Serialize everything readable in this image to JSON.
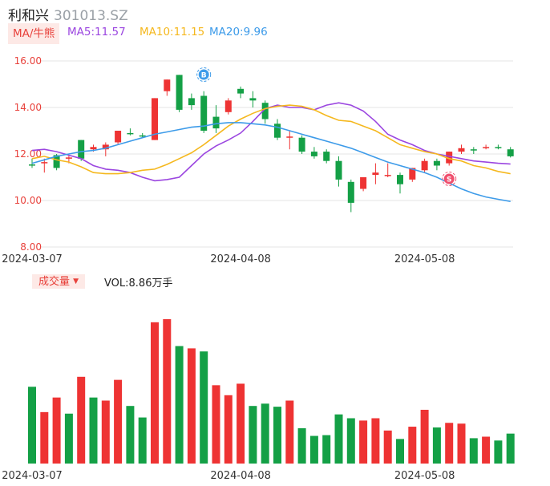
{
  "header": {
    "name": "利和兴",
    "code": "301013.SZ"
  },
  "ma_legend": {
    "tag": "MA/牛熊",
    "ma5": "MA5:11.57",
    "ma10": "MA10:11.15",
    "ma20": "MA20:9.96"
  },
  "volume_legend": {
    "tag": "成交量",
    "value": "VOL:8.86万手"
  },
  "colors": {
    "up": "#ee3333",
    "down": "#14a046",
    "ma5": "#9b46e0",
    "ma10": "#f5b81e",
    "ma20": "#3d9be9",
    "axis": "#e8413b"
  },
  "icons": {
    "b_marker": "B-buy-marker-icon",
    "s_marker": "S-sell-marker-icon"
  },
  "chart_data": [
    {
      "type": "candlestick",
      "yticks": [
        "16.00",
        "14.00",
        "12.00",
        "10.00",
        "8.00"
      ],
      "ylim": [
        8,
        16
      ],
      "xticks": [
        {
          "label": "2024-03-07",
          "index": 0
        },
        {
          "label": "2024-04-08",
          "index": 17
        },
        {
          "label": "2024-05-08",
          "index": 32
        }
      ],
      "candles": [
        [
          11.55,
          11.5,
          11.8,
          11.4
        ],
        [
          11.6,
          11.65,
          11.8,
          11.2
        ],
        [
          11.95,
          11.4,
          12.0,
          11.3
        ],
        [
          11.8,
          11.85,
          11.95,
          11.6
        ],
        [
          12.6,
          11.8,
          12.6,
          11.7
        ],
        [
          12.2,
          12.3,
          12.4,
          12.1
        ],
        [
          12.2,
          12.4,
          12.5,
          11.9
        ],
        [
          12.5,
          13.0,
          13.0,
          12.4
        ],
        [
          12.9,
          12.85,
          13.1,
          12.8
        ],
        [
          12.8,
          12.75,
          12.9,
          12.7
        ],
        [
          12.6,
          14.4,
          14.4,
          12.6
        ],
        [
          14.7,
          15.2,
          15.2,
          14.5
        ],
        [
          15.4,
          13.9,
          15.4,
          13.8
        ],
        [
          14.4,
          14.1,
          14.6,
          13.9
        ],
        [
          14.5,
          13.0,
          14.7,
          12.9
        ],
        [
          13.6,
          13.1,
          14.1,
          12.9
        ],
        [
          13.8,
          14.3,
          14.4,
          13.7
        ],
        [
          14.8,
          14.6,
          14.9,
          14.4
        ],
        [
          14.4,
          14.3,
          14.7,
          14.0
        ],
        [
          14.2,
          13.5,
          14.3,
          13.3
        ],
        [
          13.3,
          12.7,
          13.5,
          12.6
        ],
        [
          12.75,
          12.75,
          13.0,
          12.2
        ],
        [
          12.7,
          12.1,
          12.8,
          12.0
        ],
        [
          12.1,
          11.9,
          12.3,
          11.8
        ],
        [
          12.1,
          11.7,
          12.2,
          11.6
        ],
        [
          11.7,
          10.9,
          11.9,
          10.6
        ],
        [
          10.8,
          9.9,
          10.9,
          9.5
        ],
        [
          10.5,
          11.0,
          11.0,
          10.4
        ],
        [
          11.1,
          11.2,
          11.6,
          10.7
        ],
        [
          11.05,
          11.1,
          11.6,
          11.0
        ],
        [
          11.1,
          10.7,
          11.2,
          10.3
        ],
        [
          10.9,
          11.4,
          11.4,
          10.8
        ],
        [
          11.3,
          11.7,
          11.8,
          11.2
        ],
        [
          11.7,
          11.5,
          11.8,
          11.3
        ],
        [
          11.6,
          12.1,
          12.1,
          11.5
        ],
        [
          12.1,
          12.25,
          12.4,
          12.0
        ],
        [
          12.2,
          12.15,
          12.3,
          12.0
        ],
        [
          12.25,
          12.3,
          12.4,
          12.2
        ],
        [
          12.3,
          12.25,
          12.4,
          12.2
        ],
        [
          12.2,
          11.9,
          12.3,
          11.85
        ]
      ],
      "ma5": [
        12.15,
        12.2,
        12.1,
        11.95,
        11.8,
        11.5,
        11.35,
        11.3,
        11.2,
        11.0,
        10.85,
        10.9,
        11.0,
        11.5,
        12.0,
        12.35,
        12.6,
        12.9,
        13.4,
        13.95,
        14.1,
        14.0,
        14.0,
        13.9,
        14.1,
        14.2,
        14.1,
        13.85,
        13.4,
        12.85,
        12.6,
        12.4,
        12.15,
        12.0,
        11.9,
        11.8,
        11.7,
        11.65,
        11.6,
        11.57
      ],
      "ma10": [
        11.8,
        11.9,
        11.75,
        11.65,
        11.45,
        11.2,
        11.15,
        11.15,
        11.2,
        11.3,
        11.35,
        11.55,
        11.8,
        12.05,
        12.4,
        12.8,
        13.2,
        13.5,
        13.75,
        13.95,
        14.05,
        14.1,
        14.05,
        13.9,
        13.65,
        13.45,
        13.4,
        13.2,
        13.0,
        12.7,
        12.4,
        12.25,
        12.1,
        12.0,
        11.8,
        11.7,
        11.5,
        11.4,
        11.25,
        11.15
      ],
      "ma20": [
        11.6,
        11.75,
        11.9,
        12.0,
        12.1,
        12.15,
        12.25,
        12.4,
        12.55,
        12.7,
        12.85,
        12.95,
        13.05,
        13.15,
        13.2,
        13.3,
        13.35,
        13.35,
        13.3,
        13.25,
        13.15,
        13.0,
        12.85,
        12.7,
        12.55,
        12.4,
        12.25,
        12.05,
        11.85,
        11.65,
        11.5,
        11.35,
        11.2,
        11.0,
        10.75,
        10.5,
        10.3,
        10.15,
        10.05,
        9.96
      ],
      "markers": [
        {
          "label": "B",
          "index": 14
        },
        {
          "label": "S",
          "index": 34
        }
      ]
    },
    {
      "type": "bar",
      "title": "成交量",
      "values": [
        100,
        67,
        86,
        65,
        113,
        86,
        82,
        109,
        75,
        60,
        184,
        188,
        153,
        150,
        146,
        102,
        89,
        104,
        75,
        78,
        74,
        82,
        46,
        36,
        37,
        64,
        59,
        56,
        59,
        43,
        32,
        48,
        70,
        47,
        53,
        52,
        33,
        35,
        30,
        39
      ],
      "up": [
        false,
        true,
        true,
        false,
        true,
        false,
        true,
        true,
        false,
        false,
        true,
        true,
        false,
        true,
        false,
        true,
        true,
        true,
        false,
        false,
        false,
        true,
        false,
        false,
        false,
        false,
        false,
        true,
        true,
        true,
        false,
        true,
        true,
        false,
        true,
        true,
        false,
        true,
        false,
        false
      ],
      "xticks": [
        "2024-03-07",
        "2024-04-08",
        "2024-05-08"
      ]
    }
  ]
}
